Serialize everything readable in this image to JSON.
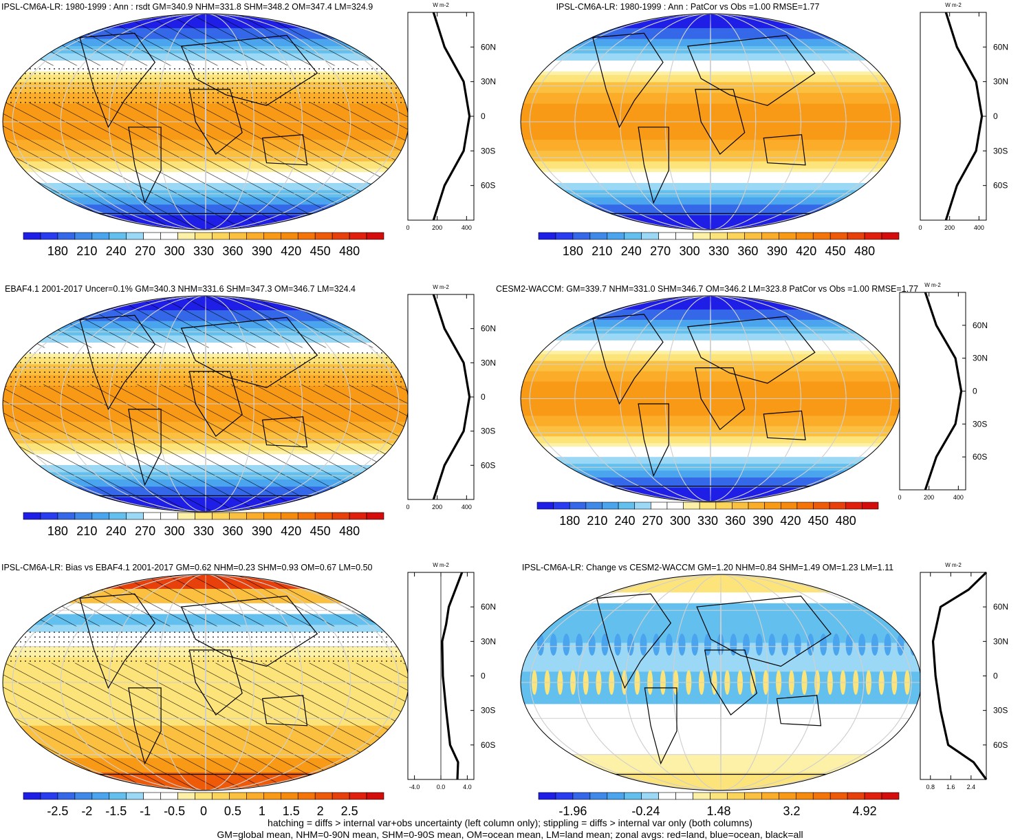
{
  "panels": [
    {
      "title": "IPSL-CM6A-LR: 1980-1999 : Ann : rsdt GM=340.9 NHM=331.8 SHM=348.2 OM=347.4 LM=324.9",
      "map_kind": "annual",
      "hatching": true,
      "stippling": true,
      "colorbar_labels": [
        "180",
        "210",
        "240",
        "270",
        "300",
        "330",
        "360",
        "390",
        "420",
        "450",
        "480"
      ],
      "colorbar_colors": [
        "#1e1ee6",
        "#2a3cf0",
        "#3468e8",
        "#3f8ae8",
        "#4aa4ee",
        "#63c0ee",
        "#9ad8f6",
        "#ffffff",
        "#ffffff",
        "#fdf1a8",
        "#fde47a",
        "#fdd45a",
        "#fcc040",
        "#fbac28",
        "#f99a16",
        "#f68a0c",
        "#f4740a",
        "#ef5a08",
        "#e8400a",
        "#e0200c",
        "#d40c0c"
      ],
      "zonal_units": "W m-2",
      "zonal_xticks": [
        "0",
        "200",
        "400"
      ],
      "zonal_yticks": [
        "60N",
        "30N",
        "0",
        "30S",
        "60S"
      ]
    },
    {
      "title": "IPSL-CM6A-LR: 1980-1999 : Ann : PatCor vs Obs =1.00 RMSE=1.77",
      "map_kind": "annual",
      "hatching": false,
      "stippling": false,
      "colorbar_labels": [
        "180",
        "210",
        "240",
        "270",
        "300",
        "330",
        "360",
        "390",
        "420",
        "450",
        "480"
      ],
      "colorbar_colors": [
        "#1e1ee6",
        "#2a3cf0",
        "#3468e8",
        "#3f8ae8",
        "#4aa4ee",
        "#63c0ee",
        "#9ad8f6",
        "#ffffff",
        "#ffffff",
        "#fdf1a8",
        "#fde47a",
        "#fdd45a",
        "#fcc040",
        "#fbac28",
        "#f99a16",
        "#f68a0c",
        "#f4740a",
        "#ef5a08",
        "#e8400a",
        "#e0200c",
        "#d40c0c"
      ],
      "zonal_units": "W m-2",
      "zonal_xticks": [
        "0",
        "200",
        "400"
      ],
      "zonal_yticks": [
        "60N",
        "30N",
        "0",
        "30S",
        "60S"
      ]
    },
    {
      "title": "EBAF4.1 2001-2017 Uncer=0.1% GM=340.3 NHM=331.6 SHM=347.3 OM=346.7 LM=324.4",
      "map_kind": "annual",
      "hatching": true,
      "stippling": true,
      "colorbar_labels": [
        "180",
        "210",
        "240",
        "270",
        "300",
        "330",
        "360",
        "390",
        "420",
        "450",
        "480"
      ],
      "colorbar_colors": [
        "#1e1ee6",
        "#2a3cf0",
        "#3468e8",
        "#3f8ae8",
        "#4aa4ee",
        "#63c0ee",
        "#9ad8f6",
        "#ffffff",
        "#ffffff",
        "#fdf1a8",
        "#fde47a",
        "#fdd45a",
        "#fcc040",
        "#fbac28",
        "#f99a16",
        "#f68a0c",
        "#f4740a",
        "#ef5a08",
        "#e8400a",
        "#e0200c",
        "#d40c0c"
      ],
      "zonal_units": "W m-2",
      "zonal_xticks": [
        "0",
        "200",
        "400"
      ],
      "zonal_yticks": [
        "60N",
        "30N",
        "0",
        "30S",
        "60S"
      ]
    },
    {
      "title": "CESM2-WACCM: GM=339.7 NHM=331.0 SHM=346.7 OM=346.2 LM=323.8 PatCor vs Obs =1.00 RMSE=1.77",
      "map_kind": "annual",
      "hatching": false,
      "stippling": false,
      "colorbar_labels": [
        "180",
        "210",
        "240",
        "270",
        "300",
        "330",
        "360",
        "390",
        "420",
        "450",
        "480"
      ],
      "colorbar_colors": [
        "#1e1ee6",
        "#2a3cf0",
        "#3468e8",
        "#3f8ae8",
        "#4aa4ee",
        "#63c0ee",
        "#9ad8f6",
        "#ffffff",
        "#ffffff",
        "#fdf1a8",
        "#fde47a",
        "#fdd45a",
        "#fcc040",
        "#fbac28",
        "#f99a16",
        "#f68a0c",
        "#f4740a",
        "#ef5a08",
        "#e8400a",
        "#e0200c",
        "#d40c0c"
      ],
      "zonal_units": "W m-2",
      "zonal_xticks": [
        "0",
        "200",
        "400"
      ],
      "zonal_yticks": [
        "60N",
        "30N",
        "0",
        "30S",
        "60S"
      ]
    },
    {
      "title": "IPSL-CM6A-LR: Bias vs EBAF4.1 2001-2017 GM=0.62 NHM=0.23 SHM=0.93 OM=0.67 LM=0.50",
      "map_kind": "bias",
      "hatching": true,
      "stippling": true,
      "colorbar_labels": [
        "-2.5",
        "-2",
        "-1.5",
        "-1",
        "-0.5",
        "0",
        "0.5",
        "1",
        "1.5",
        "2",
        "2.5"
      ],
      "colorbar_colors": [
        "#1e1ee6",
        "#2a3cf0",
        "#3468e8",
        "#3f8ae8",
        "#4aa4ee",
        "#63c0ee",
        "#9ad8f6",
        "#ffffff",
        "#ffffff",
        "#fdf1a8",
        "#fde47a",
        "#fdd45a",
        "#fcc040",
        "#fbac28",
        "#f99a16",
        "#f68a0c",
        "#f4740a",
        "#ef5a08",
        "#e8400a",
        "#e0200c",
        "#d40c0c"
      ],
      "zonal_units": "W m-2",
      "zonal_xticks": [
        "-4.0",
        "0.0",
        "4.0"
      ],
      "zonal_yticks": [
        "60N",
        "30N",
        "0",
        "30S",
        "60S"
      ]
    },
    {
      "title": "IPSL-CM6A-LR: Change vs CESM2-WACCM GM=1.20 NHM=0.84 SHM=1.49 OM=1.23 LM=1.11",
      "map_kind": "change",
      "hatching": false,
      "stippling": false,
      "colorbar_labels": [
        "-1.96",
        "-0.24",
        "1.48",
        "3.2",
        "4.92"
      ],
      "colorbar_colors": [
        "#1e1ee6",
        "#2a3cf0",
        "#3468e8",
        "#3f8ae8",
        "#4aa4ee",
        "#63c0ee",
        "#9ad8f6",
        "#ffffff",
        "#ffffff",
        "#fdf1a8",
        "#fde47a",
        "#fdd45a",
        "#fcc040",
        "#fbac28",
        "#f99a16",
        "#f68a0c",
        "#f4740a",
        "#ef5a08",
        "#e8400a",
        "#e0200c",
        "#d40c0c"
      ],
      "zonal_units": "W m-2",
      "zonal_xticks": [
        "0.8",
        "1.6",
        "2.4"
      ],
      "zonal_yticks": [
        "60N",
        "30N",
        "0",
        "30S",
        "60S"
      ]
    }
  ],
  "footer": {
    "line1": "hatching = diffs > internal var+obs uncertainty (left column only); stippling = diffs > internal var only (both columns)",
    "line2": "GM=global mean, NHM=0-90N mean, SHM=0-90S mean, OM=ocean mean, LM=land mean; zonal avgs: red=land, blue=ocean, black=all"
  },
  "chart_data": [
    {
      "type": "heatmap",
      "title": "IPSL-CM6A-LR: 1980-1999 : Ann : rsdt",
      "zonal_mean": {
        "lat": [
          -90,
          -60,
          -30,
          0,
          30,
          60,
          90
        ],
        "values": [
          175,
          250,
          380,
          420,
          380,
          250,
          175
        ]
      },
      "xlim": [
        0,
        450
      ],
      "ylim": [
        -90,
        90
      ]
    },
    {
      "type": "heatmap",
      "title": "IPSL-CM6A-LR: 1980-1999 : Ann : PatCor vs Obs",
      "zonal_mean": {
        "lat": [
          -90,
          -60,
          -30,
          0,
          30,
          60,
          90
        ],
        "values": [
          175,
          250,
          380,
          420,
          380,
          250,
          175
        ]
      },
      "xlim": [
        0,
        450
      ],
      "ylim": [
        -90,
        90
      ]
    },
    {
      "type": "heatmap",
      "title": "EBAF4.1 2001-2017",
      "zonal_mean": {
        "lat": [
          -90,
          -60,
          -30,
          0,
          30,
          60,
          90
        ],
        "values": [
          175,
          250,
          380,
          420,
          380,
          250,
          175
        ]
      },
      "xlim": [
        0,
        450
      ],
      "ylim": [
        -90,
        90
      ]
    },
    {
      "type": "heatmap",
      "title": "CESM2-WACCM",
      "zonal_mean": {
        "lat": [
          -90,
          -60,
          -30,
          0,
          30,
          60,
          90
        ],
        "values": [
          175,
          250,
          380,
          420,
          380,
          250,
          175
        ]
      },
      "xlim": [
        0,
        450
      ],
      "ylim": [
        -90,
        90
      ]
    },
    {
      "type": "heatmap",
      "title": "IPSL-CM6A-LR: Bias vs EBAF4.1 2001-2017",
      "zonal_mean": {
        "lat": [
          -90,
          -75,
          -60,
          -30,
          0,
          30,
          45,
          60,
          75,
          90
        ],
        "values": [
          2.5,
          2.6,
          1.4,
          0.8,
          0.3,
          0.2,
          0.8,
          1.2,
          2.2,
          3.2
        ]
      },
      "xlim": [
        -5,
        5
      ],
      "ylim": [
        -90,
        90
      ]
    },
    {
      "type": "heatmap",
      "title": "IPSL-CM6A-LR: Change vs CESM2-WACCM",
      "zonal_mean": {
        "lat": [
          -90,
          -75,
          -60,
          -30,
          0,
          30,
          60,
          75,
          90
        ],
        "values": [
          3.0,
          2.5,
          1.5,
          1.2,
          1.0,
          0.9,
          1.2,
          2.3,
          3.0
        ]
      },
      "xlim": [
        0.4,
        3.0
      ],
      "ylim": [
        -90,
        90
      ]
    }
  ]
}
